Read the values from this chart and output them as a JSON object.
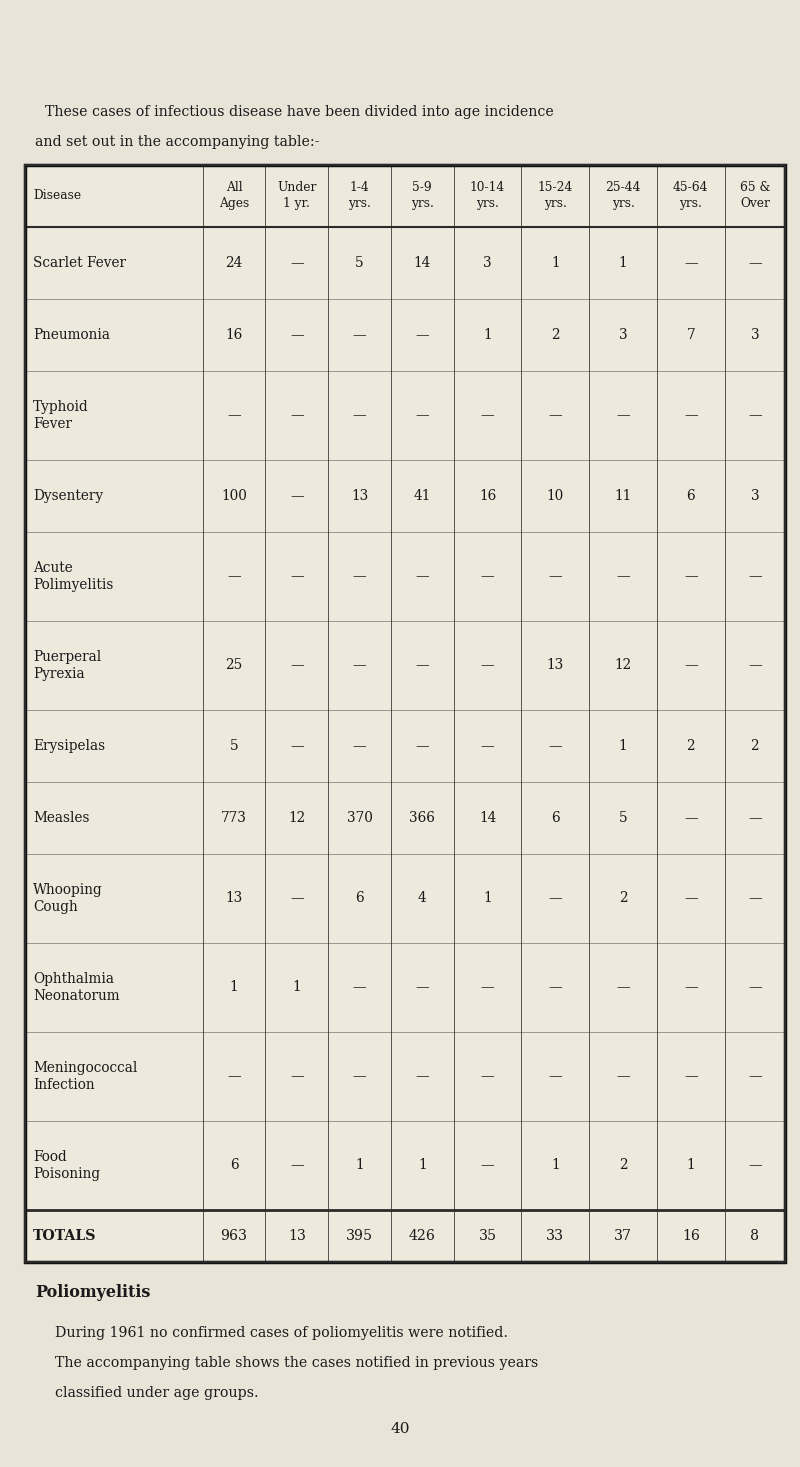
{
  "intro_text_line1": "These cases of infectious disease have been divided into age incidence",
  "intro_text_line2": "and set out in the accompanying table:-",
  "columns": [
    "Disease",
    "All\nAges",
    "Under\n1 yr.",
    "1-4\nyrs.",
    "5-9\nyrs.",
    "10-14\nyrs.",
    "15-24\nyrs.",
    "25-44\nyrs.",
    "45-64\nyrs.",
    "65 &\nOver"
  ],
  "rows": [
    [
      "Scarlet Fever",
      "24",
      "—",
      "5",
      "14",
      "3",
      "1",
      "1",
      "—",
      "—"
    ],
    [
      "Pneumonia",
      "16",
      "—",
      "—",
      "—",
      "1",
      "2",
      "3",
      "7",
      "3"
    ],
    [
      "Typhoid\nFever",
      "—",
      "—",
      "—",
      "—",
      "—",
      "—",
      "—",
      "—",
      "—"
    ],
    [
      "Dysentery",
      "100",
      "—",
      "13",
      "41",
      "16",
      "10",
      "11",
      "6",
      "3"
    ],
    [
      "Acute\nPolimyelitis",
      "—",
      "—",
      "—",
      "—",
      "—",
      "—",
      "—",
      "—",
      "—"
    ],
    [
      "Puerperal\nPyrexia",
      "25",
      "—",
      "—",
      "—",
      "—",
      "13",
      "12",
      "—",
      "—"
    ],
    [
      "Erysipelas",
      "5",
      "—",
      "—",
      "—",
      "—",
      "—",
      "1",
      "2",
      "2"
    ],
    [
      "Measles",
      "773",
      "12",
      "370",
      "366",
      "14",
      "6",
      "5",
      "—",
      "—"
    ],
    [
      "Whooping\nCough",
      "13",
      "—",
      "6",
      "4",
      "1",
      "—",
      "2",
      "—",
      "—"
    ],
    [
      "Ophthalmia\nNeonatorum",
      "1",
      "1",
      "—",
      "—",
      "—",
      "—",
      "—",
      "—",
      "—"
    ],
    [
      "Meningococcal\nInfection",
      "—",
      "—",
      "—",
      "—",
      "—",
      "—",
      "—",
      "—",
      "—"
    ],
    [
      "Food\nPoisoning",
      "6",
      "—",
      "1",
      "1",
      "—",
      "1",
      "2",
      "1",
      "—"
    ]
  ],
  "totals_row": [
    "TOTALS",
    "963",
    "13",
    "395",
    "426",
    "35",
    "33",
    "37",
    "16",
    "8"
  ],
  "polio_title": "Poliomyelitis",
  "polio_text_line1": "During 1961 no confirmed cases of poliomyelitis were notified.",
  "polio_text_line2": "The accompanying table shows the cases notified in previous years",
  "polio_text_line3": "classified under age groups.",
  "page_number": "40",
  "bg_color": "#e8e4d8",
  "table_bg": "#ede9dc",
  "border_color": "#2a2a2a",
  "text_color": "#1a1a1a",
  "fig_width": 8.0,
  "fig_height": 14.67,
  "dpi": 100
}
